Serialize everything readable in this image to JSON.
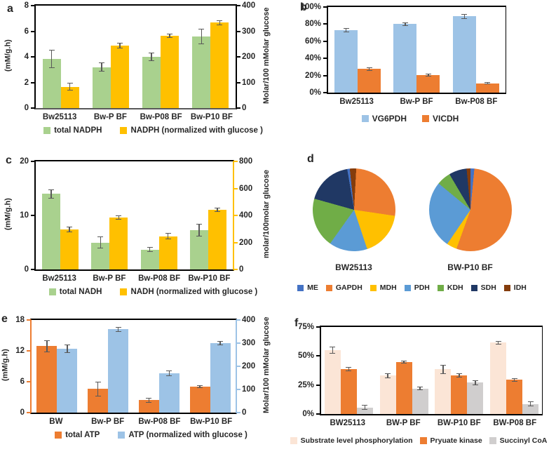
{
  "figure_background": "#ffffff",
  "chart_data": [
    {
      "id": "a",
      "panel_letter": "a",
      "type": "bar",
      "categories": [
        "Bw25113",
        "Bw-P BF",
        "Bw-P08 BF",
        "Bw-P10 BF"
      ],
      "left_axis": {
        "label": "(mM/g.h)",
        "min": 0,
        "max": 8,
        "ticks": [
          0,
          2,
          4,
          6,
          8
        ],
        "suffix": "",
        "color": "#000000"
      },
      "right_axis": {
        "label": "Molar/100 mMolar glucose",
        "min": 0,
        "max": 400,
        "ticks": [
          0,
          100,
          200,
          300,
          400
        ],
        "suffix": "",
        "color": "#000000"
      },
      "bottom_axis_color": "#595959",
      "top_border": true,
      "series": [
        {
          "name": "total NADPH",
          "color": "#A9D18E",
          "axis": "left",
          "values": [
            3.85,
            3.2,
            4.0,
            5.6
          ],
          "errors": [
            0.65,
            0.3,
            0.25,
            0.55
          ]
        },
        {
          "name": "NADPH (normalized with glucose )",
          "color": "#FFC000",
          "axis": "right",
          "values": [
            83,
            245,
            283,
            333
          ],
          "errors": [
            12,
            8,
            5,
            7
          ]
        }
      ],
      "legend_position": "bottom"
    },
    {
      "id": "b",
      "panel_letter": "b",
      "type": "bar",
      "categories": [
        "Bw25113",
        "Bw-P BF",
        "Bw-P08 BF"
      ],
      "left_axis": {
        "label": "",
        "min": 0,
        "max": 100,
        "ticks": [
          0,
          20,
          40,
          60,
          80,
          100
        ],
        "suffix": "%",
        "color": "#000000"
      },
      "bottom_axis_color": "#000000",
      "box_right_color": "#000000",
      "top_border": true,
      "series": [
        {
          "name": "VG6PDH",
          "color": "#9DC3E6",
          "axis": "left",
          "values": [
            73,
            80,
            89
          ],
          "errors": [
            1.5,
            1.2,
            2
          ]
        },
        {
          "name": "VICDH",
          "color": "#ED7D31",
          "axis": "left",
          "values": [
            27.5,
            20.5,
            11
          ],
          "errors": [
            1,
            0.8,
            0.6
          ]
        }
      ],
      "legend_position": "bottom"
    },
    {
      "id": "c",
      "panel_letter": "c",
      "type": "bar",
      "categories": [
        "Bw25113",
        "Bw-P BF",
        "Bw-P08 BF",
        "Bw-P10 BF"
      ],
      "left_axis": {
        "label": "(mM/g.h)",
        "min": 0,
        "max": 20,
        "ticks": [
          0,
          10,
          20
        ],
        "suffix": "",
        "color": "#000000"
      },
      "right_axis": {
        "label": "molar/100molar glucose",
        "min": 0,
        "max": 800,
        "ticks": [
          0,
          200,
          400,
          600,
          800
        ],
        "suffix": "",
        "color": "#FFC000"
      },
      "bottom_axis_color": "#000000",
      "top_border": true,
      "series": [
        {
          "name": "total NADH",
          "color": "#A9D18E",
          "axis": "left",
          "values": [
            14,
            5,
            3.7,
            7.3
          ],
          "errors": [
            0.7,
            1.0,
            0.3,
            1.0
          ]
        },
        {
          "name": "NADH (normalized with glucose )",
          "color": "#FFC000",
          "axis": "right",
          "values": [
            295,
            385,
            245,
            440
          ],
          "errors": [
            15,
            12,
            18,
            10
          ]
        }
      ],
      "legend_position": "bottom"
    },
    {
      "id": "d",
      "panel_letter": "d",
      "type": "pie",
      "pies": [
        {
          "label": "BW25113",
          "slices": [
            {
              "name": "GAPDH",
              "value": 26.5
            },
            {
              "name": "MDH",
              "value": 17.5
            },
            {
              "name": "PDH",
              "value": 15
            },
            {
              "name": "KDH",
              "value": 19.5
            },
            {
              "name": "SDH",
              "value": 18
            },
            {
              "name": "ME",
              "value": 1
            },
            {
              "name": "IDH",
              "value": 2.5
            }
          ]
        },
        {
          "label": "BW-P10 BF",
          "slices": [
            {
              "name": "ME",
              "value": 1.5
            },
            {
              "name": "GAPDH",
              "value": 54
            },
            {
              "name": "MDH",
              "value": 4
            },
            {
              "name": "PDH",
              "value": 26.5
            },
            {
              "name": "KDH",
              "value": 5.5
            },
            {
              "name": "SDH",
              "value": 7
            },
            {
              "name": "IDH",
              "value": 1.5
            }
          ]
        }
      ],
      "legend": [
        {
          "name": "ME",
          "color": "#4472C4"
        },
        {
          "name": "GAPDH",
          "color": "#ED7D31"
        },
        {
          "name": "MDH",
          "color": "#FFC000"
        },
        {
          "name": "PDH",
          "color": "#5B9BD5"
        },
        {
          "name": "KDH",
          "color": "#70AD47"
        },
        {
          "name": "SDH",
          "color": "#203864"
        },
        {
          "name": "IDH",
          "color": "#843C0C"
        }
      ]
    },
    {
      "id": "e",
      "panel_letter": "e",
      "type": "bar",
      "categories": [
        "BW",
        "Bw-P BF",
        "Bw-P08 BF",
        "Bw-P10 BF"
      ],
      "left_axis": {
        "label": "(mM/g.h)",
        "min": 0,
        "max": 18,
        "ticks": [
          0,
          6,
          12,
          18
        ],
        "suffix": "",
        "color": "#ED7D31"
      },
      "right_axis": {
        "label": "Molar/100 mMolar glucose",
        "min": 0,
        "max": 400,
        "ticks": [
          0,
          100,
          200,
          300,
          400
        ],
        "suffix": "",
        "color": "#9DC3E6"
      },
      "bottom_axis_color": "#000000",
      "top_border": true,
      "series": [
        {
          "name": "total ATP",
          "color": "#ED7D31",
          "axis": "left",
          "values": [
            12.9,
            4.6,
            2.4,
            5.0
          ],
          "errors": [
            1.0,
            1.3,
            0.35,
            0.15
          ]
        },
        {
          "name": "ATP (normalized with glucose )",
          "color": "#9DC3E6",
          "axis": "right",
          "values": [
            275,
            360,
            170,
            300
          ],
          "errors": [
            15,
            8,
            8,
            5
          ]
        }
      ],
      "legend_position": "bottom"
    },
    {
      "id": "f",
      "panel_letter": "f",
      "type": "bar",
      "categories": [
        "BW25113",
        "BW-P BF",
        "BW-P10 BF",
        "BW-P08 BF"
      ],
      "left_axis": {
        "label": "",
        "min": 0,
        "max": 75,
        "ticks": [
          0,
          25,
          50,
          75
        ],
        "suffix": "%",
        "color": "#000000"
      },
      "bottom_axis_color": "#000000",
      "box_right_color": "#000000",
      "top_border": true,
      "series": [
        {
          "name": "Substrate level phosphorylation",
          "color": "#FBE5D6",
          "axis": "left",
          "values": [
            55,
            33,
            38.5,
            61.5
          ],
          "errors": [
            2.5,
            1.5,
            3.5,
            1.0
          ]
        },
        {
          "name": "Pryuate kinase",
          "color": "#ED7D31",
          "axis": "left",
          "values": [
            39,
            44.5,
            33.5,
            29.5
          ],
          "errors": [
            1.2,
            0.6,
            1.2,
            1.0
          ]
        },
        {
          "name": "Succinyl CoA",
          "color": "#D0CECE",
          "axis": "left",
          "values": [
            5.5,
            22,
            27,
            8.5
          ],
          "errors": [
            1.5,
            1.0,
            1.5,
            1.5
          ]
        }
      ],
      "legend_position": "bottom"
    }
  ]
}
